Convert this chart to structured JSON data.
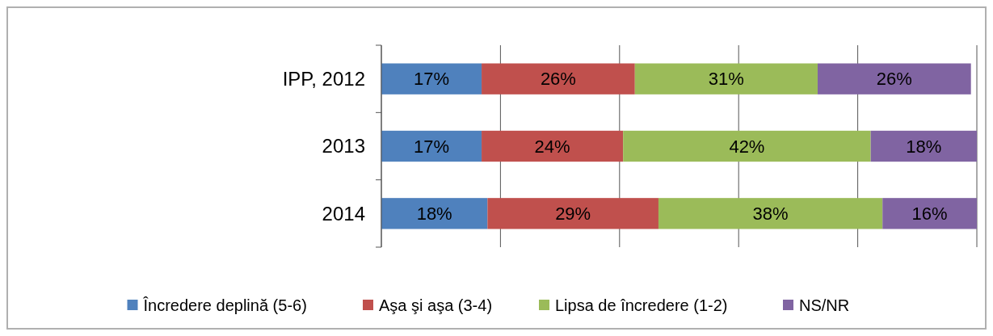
{
  "chart_data": {
    "type": "bar",
    "orientation": "horizontal",
    "stacked": true,
    "categories": [
      "IPP, 2012",
      "2013",
      "2014"
    ],
    "series": [
      {
        "name": "Încredere deplină (5-6)",
        "color": "#4f81bd",
        "values": [
          17,
          17,
          18
        ],
        "value_labels": [
          "17%",
          "17%",
          "18%"
        ]
      },
      {
        "name": "Aşa şi aşa (3-4)",
        "color": "#c0504d",
        "values": [
          26,
          24,
          29
        ],
        "value_labels": [
          "26%",
          "24%",
          "29%"
        ]
      },
      {
        "name": "Lipsa de încredere (1-2)",
        "color": "#9bbb59",
        "values": [
          31,
          42,
          38
        ],
        "value_labels": [
          "31%",
          "42%",
          "38%"
        ]
      },
      {
        "name": "NS/NR",
        "color": "#8064a2",
        "values": [
          26,
          18,
          16
        ],
        "value_labels": [
          "26%",
          "18%",
          "16%"
        ]
      }
    ],
    "tick_labels": "y",
    "grid": "x",
    "legend": "bottom"
  }
}
